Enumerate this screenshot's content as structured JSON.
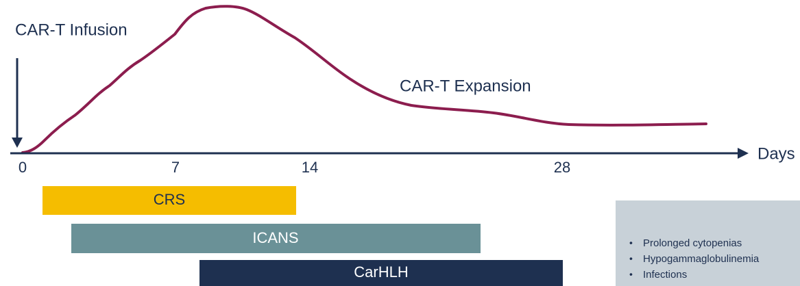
{
  "labels": {
    "infusion": "CAR-T Infusion",
    "expansion": "CAR-T Expansion",
    "axis": "Days"
  },
  "ticks": [
    "0",
    "7",
    "14",
    "28"
  ],
  "bars": [
    {
      "label": "CRS"
    },
    {
      "label": "ICANS"
    },
    {
      "label": "CarHLH"
    }
  ],
  "late_effects": [
    "Prolonged cytopenias",
    "Hypogammaglobulinemia",
    "Infections"
  ]
}
